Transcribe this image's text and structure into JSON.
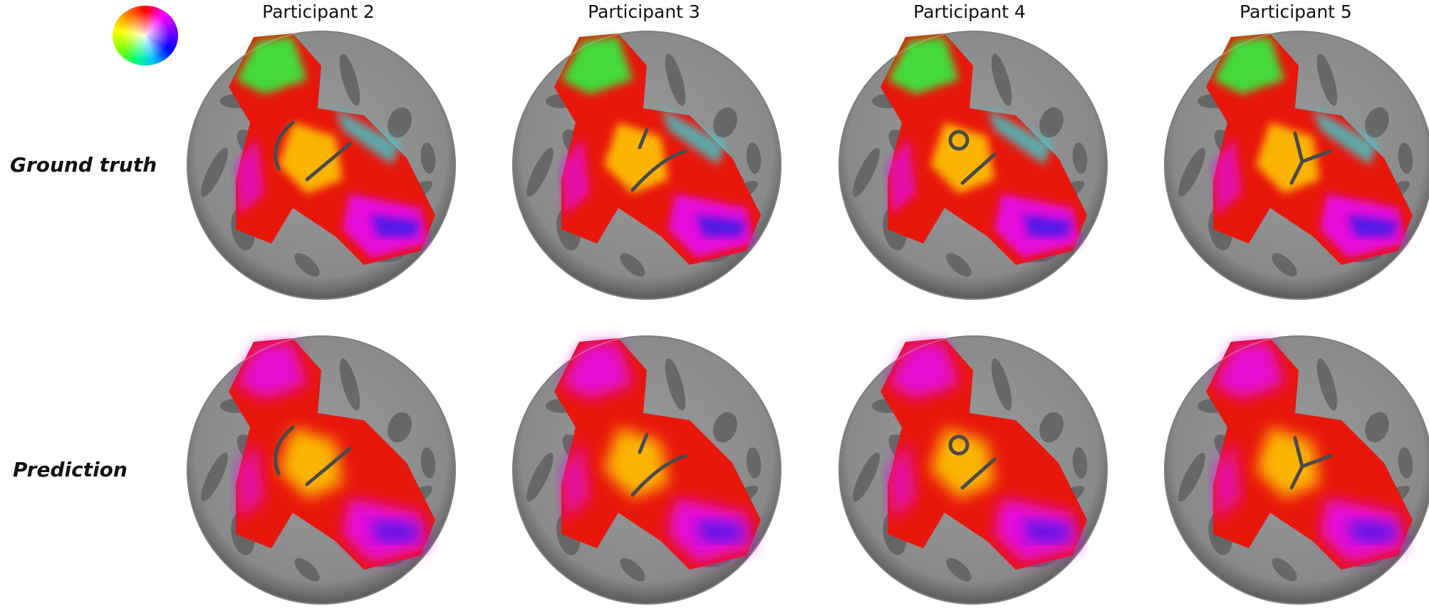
{
  "header": {
    "columns": [
      "Participant 2",
      "Participant 3",
      "Participant 4",
      "Participant 5"
    ]
  },
  "rows": [
    "Ground truth",
    "Prediction"
  ],
  "legend": {
    "icon": "polar-angle-color-wheel-icon"
  },
  "colors": {
    "sphere_light": "#a3a3a3",
    "sphere_dark": "#5e5e5e",
    "line": "#4a4a4a",
    "red": "#e8170c",
    "yellow": "#ffd000",
    "magenta": "#e410e8",
    "blue": "#2a1ae6",
    "cyan": "#20e8f0",
    "green": "#30f040"
  },
  "markers": [
    "arc-and-line",
    "short-dash-and-arc",
    "circle-and-line",
    "y-shape"
  ]
}
